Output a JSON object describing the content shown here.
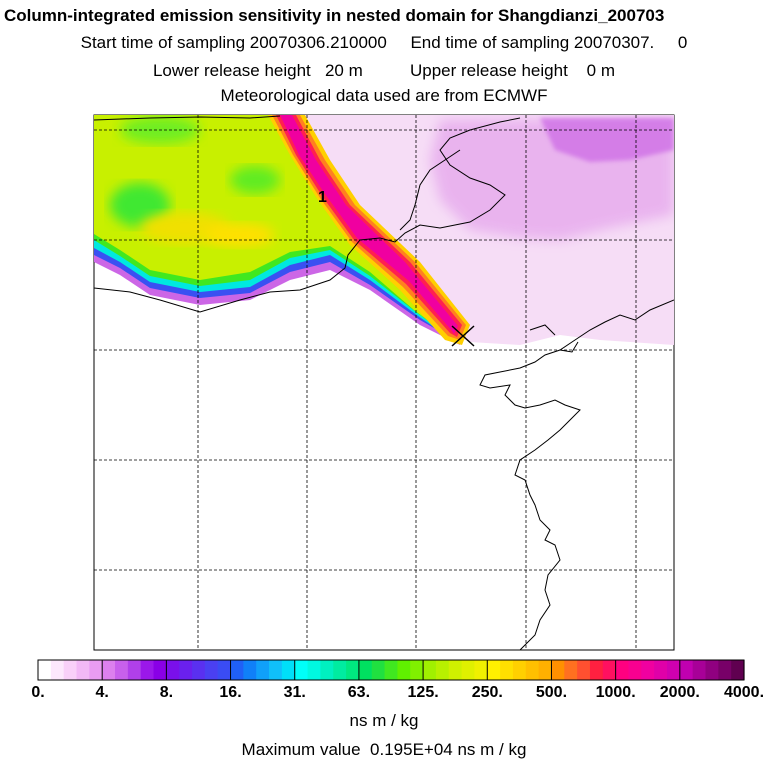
{
  "header": {
    "title": "Column-integrated emission sensitivity in nested domain for Shangdianzi_200703",
    "sampling": "Start time of sampling 20070306.210000     End time of sampling 20070307.     0",
    "heights": "Lower release height   20 m          Upper release height    0 m",
    "meteo": "Meteorological data used are from ECMWF"
  },
  "map": {
    "station_marker": "x-marker",
    "plume_label": "1"
  },
  "colorbar": {
    "tick_labels": [
      "0.",
      "4.",
      "8.",
      "16.",
      "31.",
      "63.",
      "125.",
      "250.",
      "500.",
      "1000.",
      "2000.",
      "4000."
    ],
    "colors": [
      "#ffffff",
      "#fde8fd",
      "#f9d0f9",
      "#f2b8f6",
      "#e99cf2",
      "#dc80ee",
      "#c860ec",
      "#b040ea",
      "#9b18ea",
      "#8a00e6",
      "#7a10ea",
      "#6a20ee",
      "#5a30f0",
      "#4a40f2",
      "#3a4cf4",
      "#2060f6",
      "#1080f8",
      "#10a0fa",
      "#10c0fa",
      "#00e0f8",
      "#00fff8",
      "#00f8e0",
      "#00f0c0",
      "#00eca0",
      "#00e880",
      "#00e060",
      "#20e040",
      "#40e820",
      "#60f000",
      "#80f000",
      "#a0f000",
      "#b8f000",
      "#d0f000",
      "#e0f000",
      "#f0f000",
      "#fff000",
      "#ffe000",
      "#ffd000",
      "#ffc000",
      "#ffb000",
      "#ff9000",
      "#ff7020",
      "#ff5030",
      "#ff2040",
      "#ff1060",
      "#ff0080",
      "#f80090",
      "#f000a0",
      "#e000a8",
      "#d000b0",
      "#c000b0",
      "#a80098",
      "#900080",
      "#780068",
      "#600050"
    ],
    "units": "ns m / kg"
  },
  "footer": {
    "max_value": "Maximum value  0.195E+04 ns m / kg"
  }
}
